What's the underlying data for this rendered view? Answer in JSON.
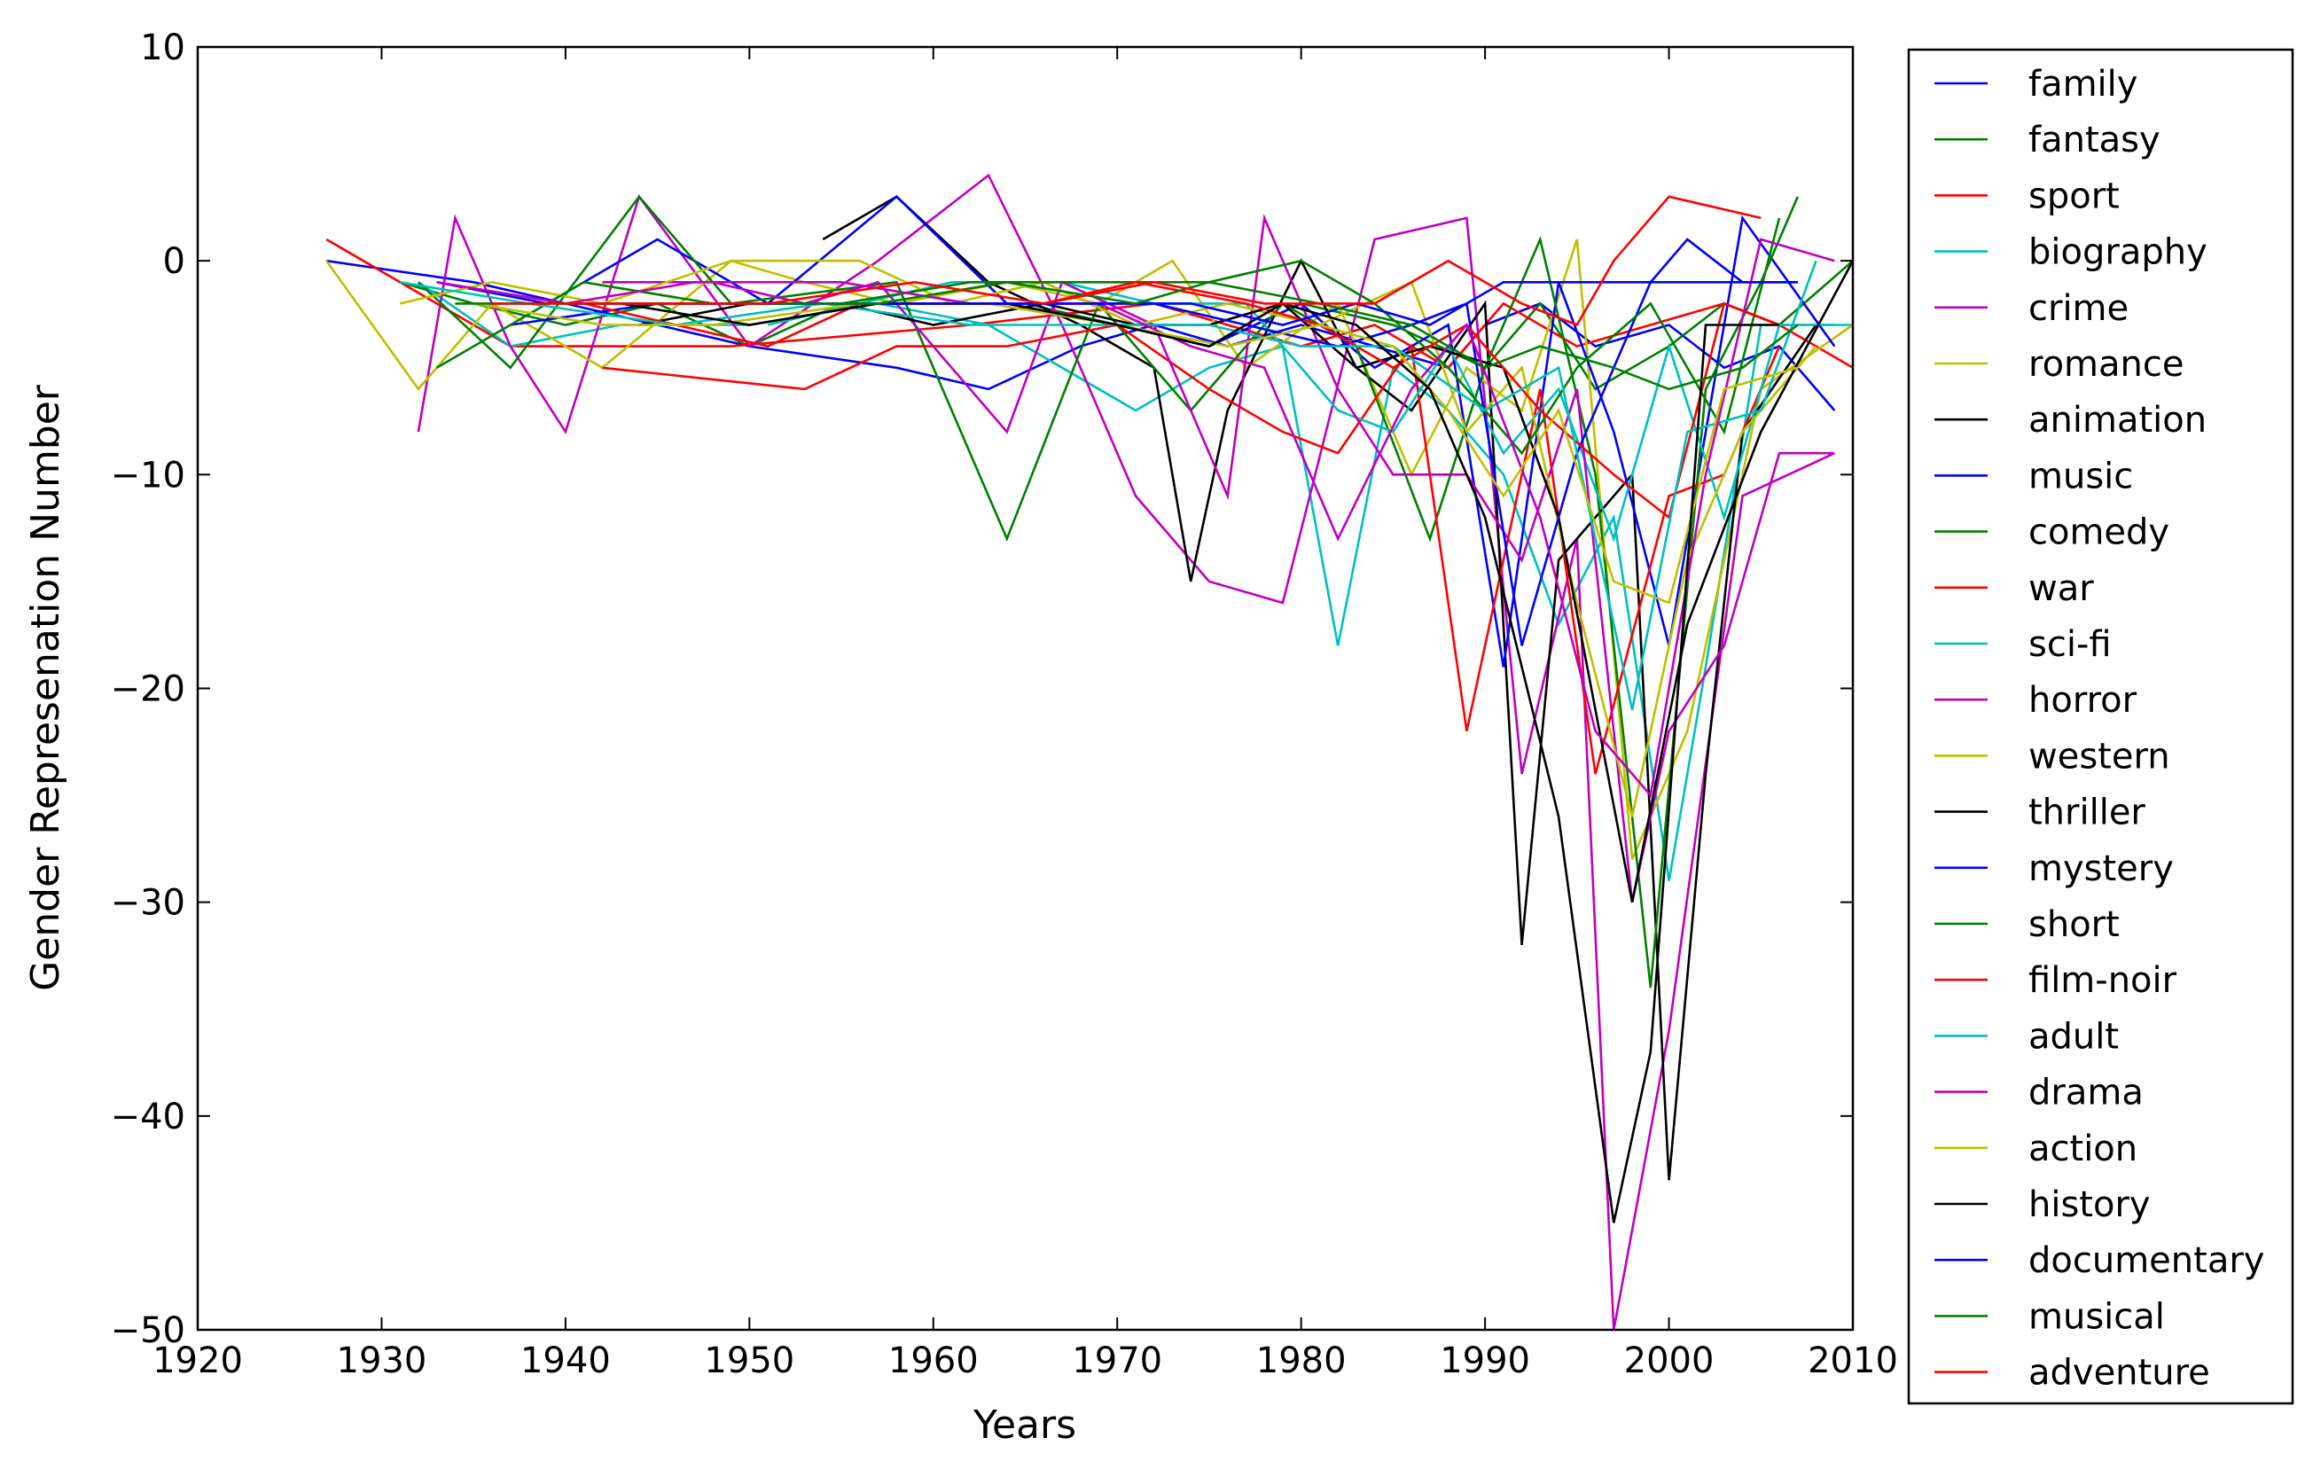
{
  "chart_data": {
    "type": "line",
    "title": "",
    "xlabel": "Years",
    "ylabel": "Gender Represenation Number",
    "xlim": [
      1920,
      2010
    ],
    "ylim": [
      -50,
      10
    ],
    "xticks": [
      1920,
      1930,
      1940,
      1950,
      1960,
      1970,
      1980,
      1990,
      2000,
      2010
    ],
    "yticks": [
      10,
      0,
      -10,
      -20,
      -30,
      -40,
      -50
    ],
    "x_tick_labels": [
      "1920",
      "1930",
      "1940",
      "1950",
      "1960",
      "1970",
      "1980",
      "1990",
      "2000",
      "2010"
    ],
    "y_tick_labels": [
      "10",
      "0",
      "−10",
      "−20",
      "−30",
      "−40",
      "−50"
    ],
    "grid": false,
    "legend_position": "outside-right",
    "series": [
      {
        "name": "family",
        "color": "#0000ff",
        "x": [
          1927,
          1935,
          1940,
          1950,
          1958,
          1963,
          1968,
          1972,
          1976,
          1980,
          1984,
          1988,
          1990,
          1993,
          1996,
          2000,
          2003,
          2006,
          2009
        ],
        "y": [
          0,
          -1,
          -2,
          -4,
          -5,
          -6,
          -4,
          -3,
          -4,
          -3,
          -4,
          -5,
          -3,
          -2,
          -4,
          -3,
          -5,
          -4,
          -7
        ]
      },
      {
        "name": "fantasy",
        "color": "#008000",
        "x": [
          1931,
          1935,
          1940,
          1945,
          1950,
          1955,
          1960,
          1965,
          1970,
          1975,
          1980,
          1985,
          1990,
          1993,
          1996,
          2000,
          2003,
          2006,
          2010
        ],
        "y": [
          -1,
          -2,
          -3,
          -2,
          -4,
          -2,
          -2,
          -2,
          -3,
          -4,
          -2,
          -3,
          -5,
          -2,
          -6,
          -4,
          -2,
          -3,
          0
        ]
      },
      {
        "name": "sport",
        "color": "#ff0000",
        "x": [
          1927,
          1937,
          1949,
          1962,
          1972,
          1976,
          1980,
          1984,
          1988,
          1991,
          1995,
          1999,
          2003,
          2006,
          2010
        ],
        "y": [
          1,
          -4,
          -4,
          -3,
          -2,
          -3,
          -4,
          -3,
          -5,
          -2,
          -4,
          -3,
          -2,
          -3,
          -5
        ]
      },
      {
        "name": "biography",
        "color": "#00bfbf",
        "x": [
          1932,
          1937,
          1943,
          1950,
          1957,
          1963,
          1971,
          1975,
          1979,
          1982,
          1985,
          1988,
          1991,
          1994,
          1997,
          2000,
          2002,
          2005,
          2010
        ],
        "y": [
          -1,
          -4,
          -3,
          -3,
          -2,
          -3,
          -7,
          -5,
          -4,
          -18,
          -5,
          -7,
          -10,
          -17,
          -12,
          -29,
          -19,
          -3,
          -3
        ]
      },
      {
        "name": "crime",
        "color": "#bf00bf",
        "x": [
          1932,
          1934,
          1937,
          1940,
          1944,
          1950,
          1957,
          1963,
          1967,
          1971,
          1975,
          1979,
          1984,
          1989,
          1992,
          1995,
          1997,
          2000,
          2004,
          2009
        ],
        "y": [
          -8,
          2,
          -4,
          -8,
          3,
          -4,
          0,
          4,
          -3,
          -11,
          -15,
          -16,
          1,
          2,
          -24,
          -13,
          -50,
          -36,
          -11,
          -9
        ]
      },
      {
        "name": "romance",
        "color": "#bfbf00",
        "x": [
          1927,
          1932,
          1936,
          1942,
          1949,
          1953,
          1958,
          1964,
          1969,
          1973,
          1977,
          1982,
          1986,
          1989,
          1992,
          1995,
          1998,
          2001,
          2005,
          2010
        ],
        "y": [
          0,
          -6,
          -2,
          -5,
          0,
          -1,
          -2,
          -1,
          -2,
          0,
          -5,
          -2,
          -10,
          -5,
          -7,
          1,
          -28,
          -22,
          -6,
          -3
        ]
      },
      {
        "name": "animation",
        "color": "#000000",
        "x": [
          1954,
          1958,
          1963,
          1968,
          1972,
          1974,
          1976,
          1980,
          1983,
          1986,
          1990,
          1992,
          1994,
          1998,
          2000,
          2002,
          2004,
          2008
        ],
        "y": [
          1,
          3,
          -1,
          -3,
          -5,
          -15,
          -7,
          0,
          -5,
          -7,
          -2,
          -32,
          -14,
          -10,
          -43,
          -24,
          -8,
          -3
        ]
      },
      {
        "name": "music",
        "color": "#0000ff",
        "x": [
          1933,
          1939,
          1945,
          1951,
          1958,
          1964,
          1970,
          1975,
          1980,
          1984,
          1988,
          1991,
          1994,
          1997,
          2000,
          2004,
          2009
        ],
        "y": [
          -1,
          -2,
          1,
          -2,
          3,
          -2,
          -3,
          -4,
          -2,
          -5,
          -3,
          -19,
          -1,
          -8,
          -18,
          2,
          -4
        ]
      },
      {
        "name": "comedy",
        "color": "#008000",
        "x": [
          1932,
          1937,
          1944,
          1949,
          1958,
          1964,
          1969,
          1974,
          1979,
          1983,
          1987,
          1990,
          1993,
          1996,
          1999,
          2002,
          2005,
          2007
        ],
        "y": [
          -1,
          -5,
          3,
          -2,
          -1,
          -13,
          -2,
          -7,
          -2,
          -4,
          -13,
          -5,
          1,
          -10,
          -34,
          -6,
          -1,
          3
        ]
      },
      {
        "name": "war",
        "color": "#ff0000",
        "x": [
          1942,
          1953,
          1958,
          1964,
          1970,
          1975,
          1979,
          1982,
          1986,
          1989,
          1993,
          1996,
          2000,
          2003,
          2006
        ],
        "y": [
          -5,
          -6,
          -4,
          -4,
          -3,
          -6,
          -8,
          -9,
          -4,
          -22,
          -6,
          -24,
          -11,
          -10,
          -4
        ]
      },
      {
        "name": "sci-fi",
        "color": "#00bfbf",
        "x": [
          1951,
          1956,
          1961,
          1967,
          1972,
          1977,
          1982,
          1985,
          1988,
          1991,
          1994,
          1997,
          2000,
          2003,
          2006,
          2009
        ],
        "y": [
          -3,
          -2,
          -1,
          -1,
          -2,
          -2,
          -7,
          -8,
          -4,
          -9,
          -6,
          -13,
          -4,
          -12,
          -3,
          -3
        ]
      },
      {
        "name": "horror",
        "color": "#bf00bf",
        "x": [
          1942,
          1948,
          1953,
          1957,
          1961,
          1964,
          1967,
          1972,
          1976,
          1978,
          1982,
          1985,
          1989,
          1992,
          1995,
          1998,
          2000,
          2003,
          2006,
          2009
        ],
        "y": [
          -1,
          -1,
          -2,
          -1,
          -5,
          -8,
          -1,
          -3,
          -11,
          2,
          -6,
          -10,
          -10,
          -14,
          -6,
          -30,
          -22,
          -18,
          -9,
          -9
        ]
      },
      {
        "name": "western",
        "color": "#bfbf00",
        "x": [
          1931,
          1936,
          1942,
          1949,
          1956,
          1961,
          1966,
          1971,
          1976,
          1981,
          1986,
          1989,
          1992,
          1995,
          1998,
          2001,
          2004,
          2008
        ],
        "y": [
          -2,
          -1,
          -2,
          0,
          0,
          -2,
          -1,
          -3,
          -2,
          -3,
          -1,
          -8,
          -5,
          -16,
          -26,
          -14,
          -8,
          -4
        ]
      },
      {
        "name": "thriller",
        "color": "#000000",
        "x": [
          1944,
          1950,
          1955,
          1960,
          1966,
          1971,
          1975,
          1979,
          1983,
          1987,
          1991,
          1994,
          1998,
          2001,
          2005,
          2010
        ],
        "y": [
          -3,
          -2,
          -2,
          -3,
          -2,
          -3,
          -3,
          -2,
          -5,
          -4,
          -5,
          -12,
          -30,
          -17,
          -8,
          0
        ]
      },
      {
        "name": "mystery",
        "color": "#0000ff",
        "x": [
          1937,
          1945,
          1952,
          1958,
          1965,
          1972,
          1977,
          1982,
          1986,
          1989,
          1992,
          1995,
          1999,
          2003,
          2007
        ],
        "y": [
          -3,
          -2,
          -2,
          -2,
          -2,
          -2,
          -3,
          -4,
          -3,
          -2,
          -18,
          -9,
          -1,
          -1,
          -1
        ]
      },
      {
        "name": "short",
        "color": "#008000",
        "x": [
          1933,
          1941,
          1948,
          1955,
          1962,
          1968,
          1975,
          1980,
          1984,
          1988,
          1992,
          1995,
          1999,
          2003,
          2006
        ],
        "y": [
          -5,
          -1,
          -2,
          -2,
          -1,
          -1,
          -1,
          0,
          -2,
          -5,
          -9,
          -5,
          -2,
          -8,
          2
        ]
      },
      {
        "name": "film-noir",
        "color": "#ff0000",
        "x": [
          1941,
          1946,
          1951,
          1956,
          1961,
          1966,
          1971,
          1977,
          1981,
          1985,
          1989,
          1993,
          1997,
          2000,
          2003,
          2006
        ],
        "y": [
          -2,
          -3,
          -4,
          -2,
          -2,
          -2,
          -1,
          -2,
          -3,
          -5,
          -3,
          -7,
          -10,
          -12,
          -2,
          -3
        ]
      },
      {
        "name": "adult",
        "color": "#00bfbf",
        "x": [
          1931,
          1938,
          1946,
          1954,
          1962,
          1969,
          1975,
          1980,
          1985,
          1990,
          1994,
          1998,
          2001,
          2005,
          2008
        ],
        "y": [
          -1,
          -2,
          -3,
          -2,
          -3,
          -3,
          -3,
          -4,
          -4,
          -7,
          -5,
          -21,
          -8,
          -7,
          0
        ]
      },
      {
        "name": "drama",
        "color": "#bf00bf",
        "x": [
          1933,
          1940,
          1947,
          1955,
          1962,
          1969,
          1974,
          1978,
          1982,
          1986,
          1989,
          1993,
          1996,
          1999,
          2002,
          2005,
          2009
        ],
        "y": [
          -1,
          -2,
          -1,
          -1,
          -2,
          -2,
          -4,
          -5,
          -13,
          -6,
          -3,
          -12,
          -22,
          -25,
          -10,
          1,
          0
        ]
      },
      {
        "name": "action",
        "color": "#bfbf00",
        "x": [
          1935,
          1942,
          1948,
          1956,
          1963,
          1970,
          1976,
          1981,
          1985,
          1988,
          1991,
          1994,
          1997,
          2000,
          2003,
          2007
        ],
        "y": [
          -2,
          -3,
          -3,
          -2,
          -2,
          -3,
          -4,
          -3,
          -4,
          -7,
          -11,
          -7,
          -15,
          -16,
          -6,
          -5
        ]
      },
      {
        "name": "history",
        "color": "#000000",
        "x": [
          1943,
          1950,
          1957,
          1964,
          1970,
          1975,
          1979,
          1983,
          1987,
          1990,
          1994,
          1997,
          1999,
          2002,
          2006
        ],
        "y": [
          -2,
          -3,
          -2,
          -2,
          -3,
          -4,
          -2,
          -3,
          -6,
          -12,
          -26,
          -45,
          -37,
          -3,
          -3
        ]
      },
      {
        "name": "documentary",
        "color": "#0000ff",
        "x": [
          1940,
          1947,
          1954,
          1961,
          1968,
          1974,
          1979,
          1983,
          1987,
          1991,
          1995,
          1999,
          2001,
          2004,
          2007
        ],
        "y": [
          -2,
          -2,
          -2,
          -2,
          -2,
          -2,
          -3,
          -2,
          -3,
          -1,
          -1,
          -1,
          1,
          -1,
          -1
        ]
      },
      {
        "name": "musical",
        "color": "#008000",
        "x": [
          1934,
          1941,
          1949,
          1957,
          1964,
          1971,
          1975,
          1981,
          1986,
          1990,
          1993,
          1997,
          2000,
          2004,
          2007
        ],
        "y": [
          -2,
          -2,
          -2,
          -2,
          -1,
          -2,
          -1,
          -2,
          -3,
          -5,
          -4,
          -5,
          -6,
          -5,
          -3
        ]
      },
      {
        "name": "adventure",
        "color": "#ff0000",
        "x": [
          1936,
          1944,
          1951,
          1959,
          1966,
          1972,
          1978,
          1984,
          1988,
          1992,
          1995,
          1997,
          2000,
          2005
        ],
        "y": [
          -2,
          -2,
          -2,
          -1,
          -2,
          -1,
          -2,
          -2,
          0,
          -2,
          -3,
          0,
          3,
          2
        ]
      }
    ]
  }
}
